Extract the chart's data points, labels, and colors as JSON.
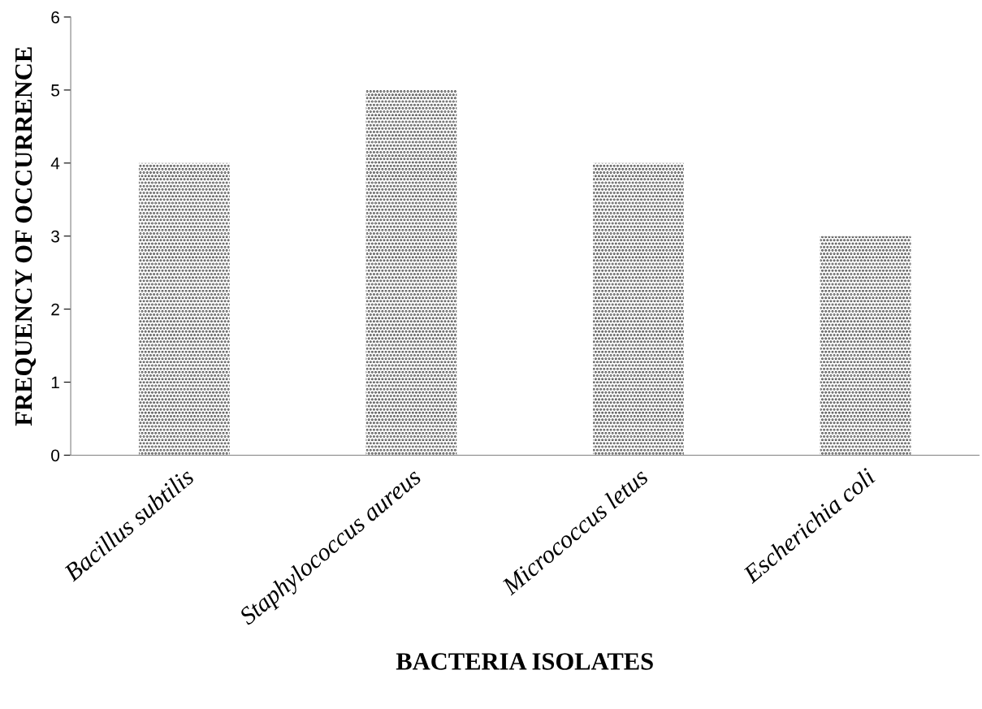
{
  "chart_data": {
    "type": "bar",
    "xlabel": "BACTERIA ISOLATES",
    "ylabel": "FREQUENCY OF OCCURRENCE",
    "categories": [
      "Bacillus subtilis",
      "Staphylococcus aureus",
      "Micrococcus letus",
      "Escherichia coli"
    ],
    "values": [
      4,
      5,
      4,
      3
    ],
    "color": "#404040",
    "ylim": [
      0,
      6
    ],
    "yticks": [
      0,
      1,
      2,
      3,
      4,
      5,
      6
    ],
    "grid": false
  }
}
